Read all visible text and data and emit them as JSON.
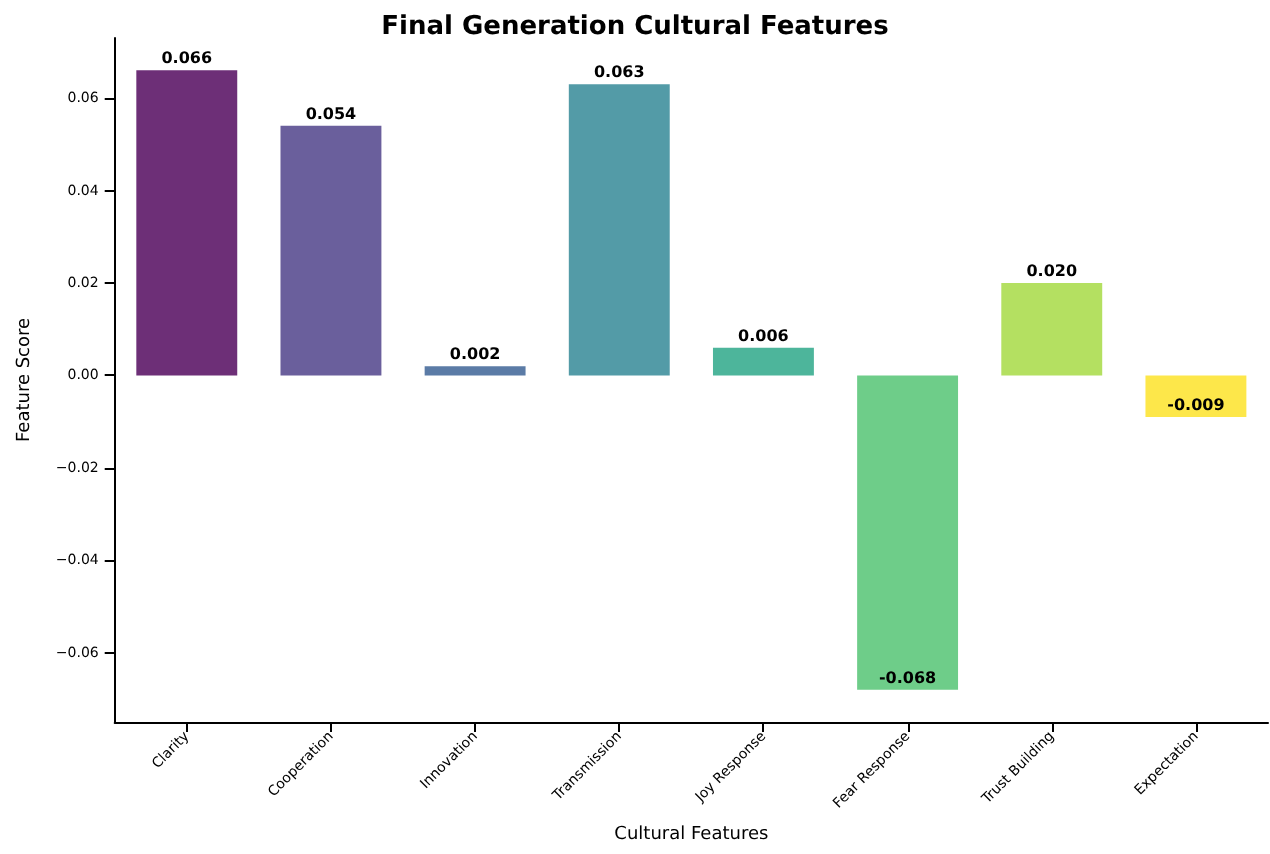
{
  "chart_data": {
    "type": "bar",
    "title": "Final Generation Cultural Features",
    "xlabel": "Cultural Features",
    "ylabel": "Feature Score",
    "categories": [
      "Clarity",
      "Cooperation",
      "Innovation",
      "Transmission",
      "Joy Response",
      "Fear Response",
      "Trust Building",
      "Expectation"
    ],
    "values": [
      0.066,
      0.054,
      0.002,
      0.063,
      0.006,
      -0.068,
      0.02,
      -0.009
    ],
    "value_labels": [
      "0.066",
      "0.054",
      "0.002",
      "0.063",
      "0.006",
      "-0.068",
      "0.020",
      "-0.009"
    ],
    "colors": [
      "#6d2f77",
      "#6a5f9c",
      "#5b7ba6",
      "#539ba7",
      "#4db59b",
      "#6ecd89",
      "#b4e061",
      "#fde74a"
    ],
    "ylim": [
      -0.075,
      0.073
    ],
    "yticks": [
      -0.06,
      -0.04,
      -0.02,
      {
        "value": 0,
        "label": "0.00"
      },
      0.02,
      0.04,
      0.06
    ],
    "grid": false
  }
}
